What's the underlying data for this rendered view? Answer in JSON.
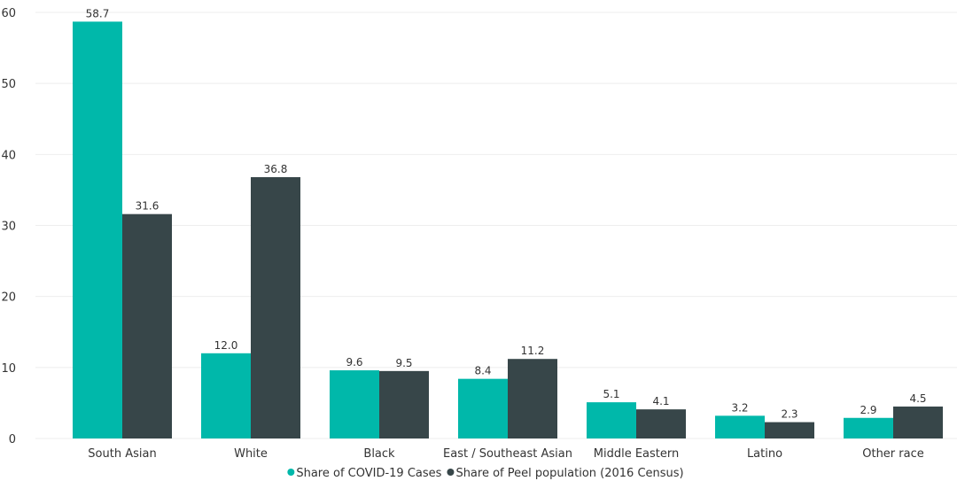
{
  "chart_data": {
    "type": "bar",
    "categories": [
      "South Asian",
      "White",
      "Black",
      "East / Southeast Asian",
      "Middle Eastern",
      "Latino",
      "Other race"
    ],
    "series": [
      {
        "name": "Share of COVID-19 Cases",
        "color": "#00B8AA",
        "values": [
          58.7,
          12.0,
          9.6,
          8.4,
          5.1,
          3.2,
          2.9
        ],
        "labels": [
          "58.7",
          "12.0",
          "9.6",
          "8.4",
          "5.1",
          "3.2",
          "2.9"
        ]
      },
      {
        "name": "Share of Peel population (2016 Census)",
        "color": "#374649",
        "values": [
          31.6,
          36.8,
          9.5,
          11.2,
          4.1,
          2.3,
          4.5
        ],
        "labels": [
          "31.6",
          "36.8",
          "9.5",
          "11.2",
          "4.1",
          "2.3",
          "4.5"
        ]
      }
    ],
    "yticks": [
      "0",
      "10",
      "20",
      "30",
      "40",
      "50",
      "60"
    ],
    "ylim": [
      0,
      60
    ],
    "grid": true,
    "legend_position": "bottom-center"
  }
}
